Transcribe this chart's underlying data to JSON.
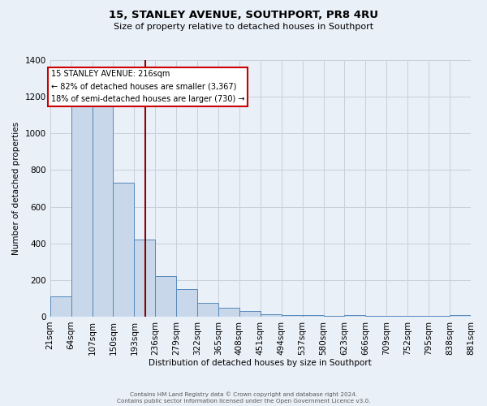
{
  "title": "15, STANLEY AVENUE, SOUTHPORT, PR8 4RU",
  "subtitle": "Size of property relative to detached houses in Southport",
  "xlabel": "Distribution of detached houses by size in Southport",
  "ylabel": "Number of detached properties",
  "bin_left_edges": [
    21,
    64,
    107,
    150,
    193,
    236,
    279,
    322,
    365,
    408,
    451,
    494,
    537,
    580,
    623,
    666,
    709,
    752,
    795,
    838
  ],
  "bar_heights": [
    110,
    1155,
    1150,
    730,
    420,
    220,
    150,
    75,
    50,
    30,
    15,
    10,
    10,
    5,
    10,
    5,
    5,
    3,
    3,
    10
  ],
  "bin_width": 43,
  "last_tick": 881,
  "bar_color": "#c8d8ea",
  "bar_edge_color": "#5588bb",
  "vline_x": 216,
  "vline_color": "#8b0000",
  "annotation_title": "15 STANLEY AVENUE: 216sqm",
  "annotation_line1": "← 82% of detached houses are smaller (3,367)",
  "annotation_line2": "18% of semi-detached houses are larger (730) →",
  "annotation_box_facecolor": "#ffffff",
  "annotation_box_edgecolor": "#cc0000",
  "ylim": [
    0,
    1400
  ],
  "yticks": [
    0,
    200,
    400,
    600,
    800,
    1000,
    1200,
    1400
  ],
  "tick_labels": [
    "21sqm",
    "64sqm",
    "107sqm",
    "150sqm",
    "193sqm",
    "236sqm",
    "279sqm",
    "322sqm",
    "365sqm",
    "408sqm",
    "451sqm",
    "494sqm",
    "537sqm",
    "580sqm",
    "623sqm",
    "666sqm",
    "709sqm",
    "752sqm",
    "795sqm",
    "838sqm",
    "881sqm"
  ],
  "bg_color": "#eaf0f8",
  "grid_color": "#c8d0dc",
  "footer1": "Contains HM Land Registry data © Crown copyright and database right 2024.",
  "footer2": "Contains public sector information licensed under the Open Government Licence v3.0."
}
